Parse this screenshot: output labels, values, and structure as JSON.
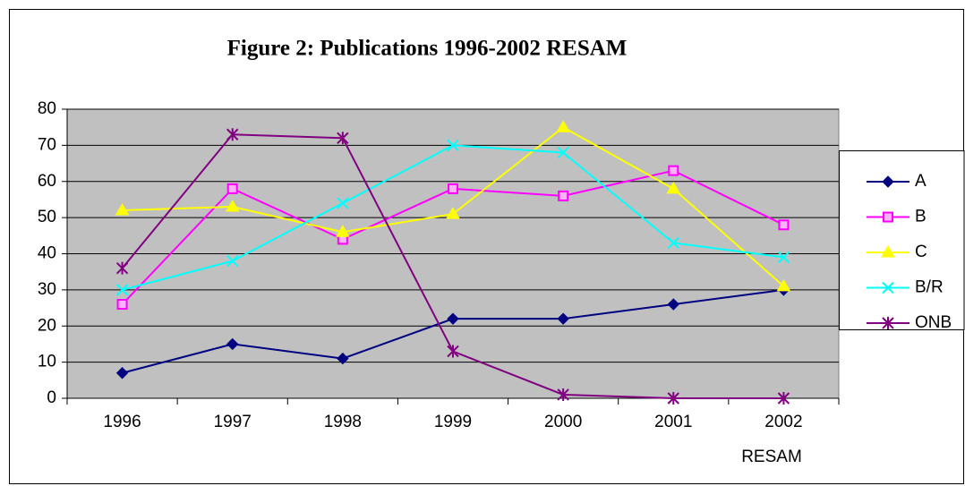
{
  "chart_data": {
    "type": "line",
    "title": "Figure 2: Publications 1996-2002 RESAM",
    "xlabel": "RESAM",
    "categories": [
      "1996",
      "1997",
      "1998",
      "1999",
      "2000",
      "2001",
      "2002"
    ],
    "series": [
      {
        "name": "A",
        "color": "#000080",
        "marker": "diamond",
        "values": [
          7,
          15,
          11,
          22,
          22,
          26,
          30
        ]
      },
      {
        "name": "B",
        "color": "#ff00ff",
        "marker": "square",
        "values": [
          26,
          58,
          44,
          58,
          56,
          63,
          48
        ]
      },
      {
        "name": "C",
        "color": "#ffff00",
        "marker": "triangle",
        "values": [
          52,
          53,
          46,
          51,
          75,
          58,
          31
        ]
      },
      {
        "name": "B/R",
        "color": "#00ffff",
        "marker": "x",
        "values": [
          30,
          38,
          54,
          70,
          68,
          43,
          39
        ]
      },
      {
        "name": "ONB",
        "color": "#800080",
        "marker": "asterisk",
        "values": [
          36,
          73,
          72,
          13,
          1,
          0,
          0
        ]
      }
    ],
    "ylim": [
      0,
      80
    ],
    "yticks": [
      0,
      10,
      20,
      30,
      40,
      50,
      60,
      70,
      80
    ],
    "grid": true,
    "legend": "right",
    "plot_background": "#c0c0c0"
  }
}
